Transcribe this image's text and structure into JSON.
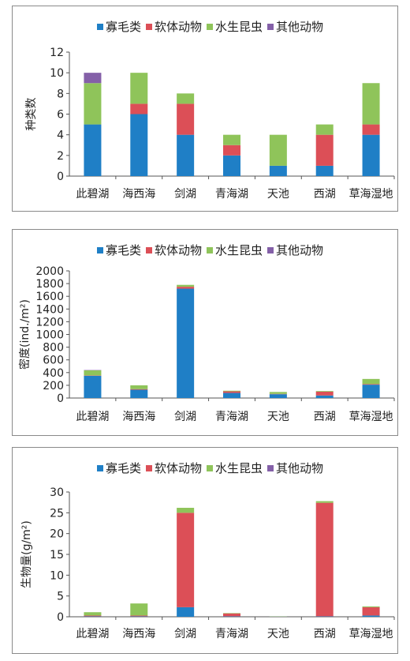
{
  "legend": [
    "寡毛类",
    "软体动物",
    "水生昆虫",
    "其他动物"
  ],
  "colors": [
    "#1f7fc6",
    "#dc4f57",
    "#8fc45a",
    "#8460a8"
  ],
  "chart_data": [
    {
      "type": "bar",
      "stacked": true,
      "ylabel": "种类数",
      "ylim": [
        0,
        12
      ],
      "yticks": [
        0,
        2,
        4,
        6,
        8,
        10,
        12
      ],
      "categories": [
        "此碧湖",
        "海西海",
        "剑湖",
        "青海湖",
        "天池",
        "西湖",
        "草海湿地"
      ],
      "series": [
        {
          "name": "寡毛类",
          "values": [
            5,
            6,
            4,
            2,
            1,
            1,
            4
          ]
        },
        {
          "name": "软体动物",
          "values": [
            0,
            1,
            3,
            1,
            0,
            3,
            1
          ]
        },
        {
          "name": "水生昆虫",
          "values": [
            4,
            3,
            1,
            1,
            3,
            1,
            4
          ]
        },
        {
          "name": "其他动物",
          "values": [
            1,
            0,
            0,
            0,
            0,
            0,
            0
          ]
        }
      ]
    },
    {
      "type": "bar",
      "stacked": true,
      "ylabel": "密度(ind./m²)",
      "ylim": [
        0,
        2000
      ],
      "yticks": [
        0,
        200,
        400,
        600,
        800,
        1000,
        1200,
        1400,
        1600,
        1800,
        2000
      ],
      "categories": [
        "此碧湖",
        "海西海",
        "剑湖",
        "青海湖",
        "天池",
        "西湖",
        "草海湿地"
      ],
      "series": [
        {
          "name": "寡毛类",
          "values": [
            350,
            130,
            1720,
            80,
            60,
            40,
            210
          ]
        },
        {
          "name": "软体动物",
          "values": [
            5,
            10,
            30,
            25,
            5,
            60,
            10
          ]
        },
        {
          "name": "水生昆虫",
          "values": [
            80,
            60,
            30,
            10,
            30,
            10,
            80
          ]
        },
        {
          "name": "其他动物",
          "values": [
            5,
            0,
            0,
            0,
            0,
            0,
            0
          ]
        }
      ]
    },
    {
      "type": "bar",
      "stacked": true,
      "ylabel": "生物量(g/m²)",
      "ylim": [
        0,
        30
      ],
      "yticks": [
        0,
        5,
        10,
        15,
        20,
        25,
        30
      ],
      "categories": [
        "此碧湖",
        "海西海",
        "剑湖",
        "青海湖",
        "天池",
        "西湖",
        "草海湿地"
      ],
      "series": [
        {
          "name": "寡毛类",
          "values": [
            0.1,
            0.1,
            2.3,
            0.1,
            0.02,
            0.1,
            0.3
          ]
        },
        {
          "name": "软体动物",
          "values": [
            0.2,
            0.2,
            22.7,
            0.7,
            0,
            27.3,
            2.0
          ]
        },
        {
          "name": "水生昆虫",
          "values": [
            0.8,
            2.9,
            1.2,
            0.1,
            0.05,
            0.4,
            0.2
          ]
        },
        {
          "name": "其他动物",
          "values": [
            0,
            0,
            0,
            0,
            0,
            0,
            0
          ]
        }
      ]
    }
  ]
}
